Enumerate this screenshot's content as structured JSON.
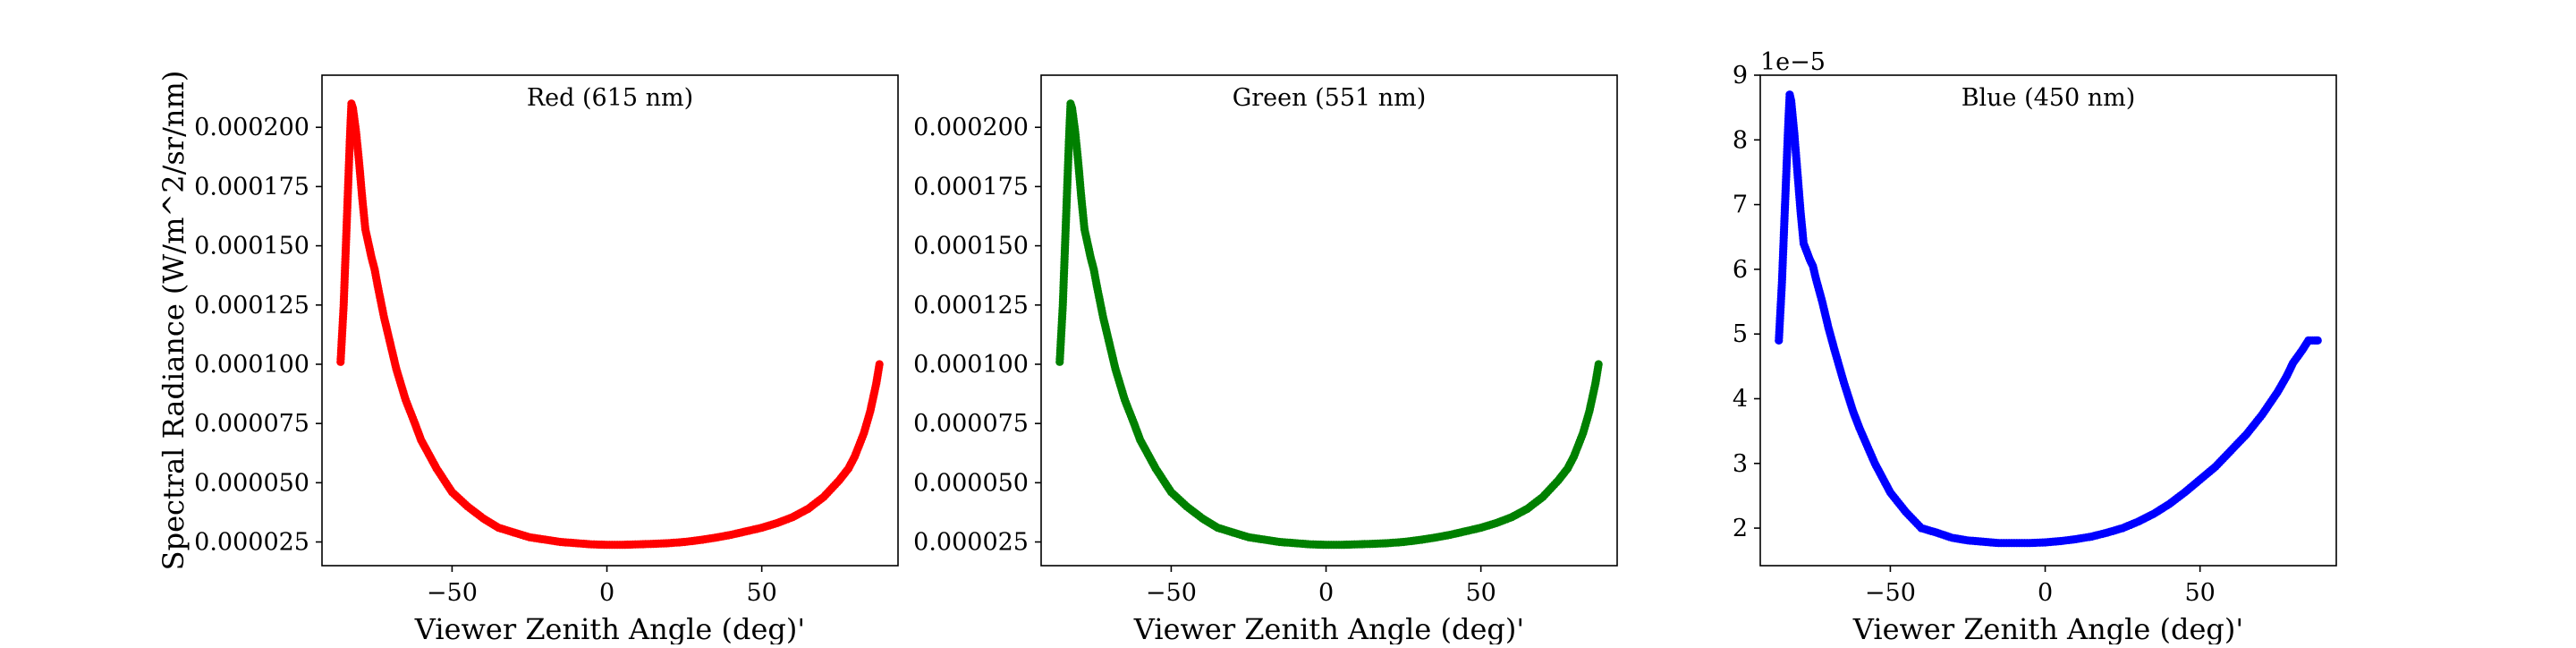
{
  "chart_data": [
    {
      "type": "scatter",
      "title": "Red (615 nm)",
      "xlabel": "Viewer Zenith Angle (deg)'",
      "ylabel": "Spectral Radiance (W/m^2/sr/nm)",
      "color": "#ff0000",
      "xlim": [
        -92,
        94
      ],
      "ylim": [
        1.5e-05,
        0.000222
      ],
      "x_ticks": [
        -50,
        0,
        50
      ],
      "x_tick_labels": [
        "−50",
        "0",
        "50"
      ],
      "y_ticks": [
        2.5e-05,
        5e-05,
        7.5e-05,
        0.0001,
        0.000125,
        0.00015,
        0.000175,
        0.0002
      ],
      "y_tick_labels": [
        "0.000025",
        "0.000050",
        "0.000075",
        "0.000100",
        "0.000125",
        "0.000150",
        "0.000175",
        "0.000200"
      ],
      "y_offset_label": "",
      "series": [
        {
          "x": [
            -86,
            -85,
            -84,
            -83,
            -82.5,
            -82,
            -81,
            -80,
            -79,
            -78,
            -76,
            -75,
            -74,
            -72,
            -70,
            -68,
            -65,
            -62,
            -60,
            -55,
            -50,
            -45,
            -40,
            -35,
            -30,
            -25,
            -20,
            -15,
            -10,
            -5,
            0,
            5,
            10,
            15,
            20,
            25,
            30,
            35,
            40,
            45,
            50,
            55,
            60,
            65,
            70,
            75,
            78,
            80,
            83,
            85,
            87,
            88
          ],
          "y": [
            0.000101,
            0.000125,
            0.00016,
            0.000195,
            0.00021,
            0.000208,
            0.000198,
            0.000185,
            0.00017,
            0.000157,
            0.000145,
            0.00014,
            0.000133,
            0.00012,
            0.000109,
            9.8e-05,
            8.5e-05,
            7.5e-05,
            6.8e-05,
            5.6e-05,
            4.6e-05,
            4e-05,
            3.5e-05,
            3.1e-05,
            2.9e-05,
            2.7e-05,
            2.6e-05,
            2.5e-05,
            2.45e-05,
            2.4e-05,
            2.38e-05,
            2.38e-05,
            2.4e-05,
            2.42e-05,
            2.45e-05,
            2.5e-05,
            2.58e-05,
            2.68e-05,
            2.8e-05,
            2.95e-05,
            3.1e-05,
            3.3e-05,
            3.55e-05,
            3.9e-05,
            4.4e-05,
            5.1e-05,
            5.6e-05,
            6.1e-05,
            7.1e-05,
            8e-05,
            9.2e-05,
            0.0001
          ]
        }
      ]
    },
    {
      "type": "scatter",
      "title": "Green (551 nm)",
      "xlabel": "Viewer Zenith Angle (deg)'",
      "ylabel": "",
      "color": "#008000",
      "xlim": [
        -92,
        94
      ],
      "ylim": [
        1.5e-05,
        0.000222
      ],
      "x_ticks": [
        -50,
        0,
        50
      ],
      "x_tick_labels": [
        "−50",
        "0",
        "50"
      ],
      "y_ticks": [
        2.5e-05,
        5e-05,
        7.5e-05,
        0.0001,
        0.000125,
        0.00015,
        0.000175,
        0.0002
      ],
      "y_tick_labels": [
        "0.000025",
        "0.000050",
        "0.000075",
        "0.000100",
        "0.000125",
        "0.000150",
        "0.000175",
        "0.000200"
      ],
      "y_offset_label": "",
      "series": [
        {
          "x": [
            -86,
            -85,
            -84,
            -83,
            -82.5,
            -82,
            -81,
            -80,
            -79,
            -78,
            -76,
            -75,
            -74,
            -72,
            -70,
            -68,
            -65,
            -62,
            -60,
            -55,
            -50,
            -45,
            -40,
            -35,
            -30,
            -25,
            -20,
            -15,
            -10,
            -5,
            0,
            5,
            10,
            15,
            20,
            25,
            30,
            35,
            40,
            45,
            50,
            55,
            60,
            65,
            70,
            75,
            78,
            80,
            83,
            85,
            87,
            88
          ],
          "y": [
            0.000101,
            0.000125,
            0.00016,
            0.000195,
            0.00021,
            0.000208,
            0.000198,
            0.000185,
            0.00017,
            0.000157,
            0.000145,
            0.00014,
            0.000133,
            0.00012,
            0.000109,
            9.8e-05,
            8.5e-05,
            7.5e-05,
            6.8e-05,
            5.6e-05,
            4.6e-05,
            4e-05,
            3.5e-05,
            3.1e-05,
            2.9e-05,
            2.7e-05,
            2.6e-05,
            2.5e-05,
            2.45e-05,
            2.4e-05,
            2.38e-05,
            2.38e-05,
            2.4e-05,
            2.42e-05,
            2.45e-05,
            2.5e-05,
            2.58e-05,
            2.68e-05,
            2.8e-05,
            2.95e-05,
            3.1e-05,
            3.3e-05,
            3.55e-05,
            3.9e-05,
            4.4e-05,
            5.1e-05,
            5.6e-05,
            6.1e-05,
            7.1e-05,
            8e-05,
            9.2e-05,
            0.0001
          ]
        }
      ]
    },
    {
      "type": "scatter",
      "title": "Blue (450 nm)",
      "xlabel": "Viewer Zenith Angle (deg)'",
      "ylabel": "",
      "color": "#0000ff",
      "xlim": [
        -92,
        94
      ],
      "ylim": [
        1.42e-05,
        9e-05
      ],
      "x_ticks": [
        -50,
        0,
        50
      ],
      "x_tick_labels": [
        "−50",
        "0",
        "50"
      ],
      "y_ticks": [
        2e-05,
        3e-05,
        4e-05,
        5e-05,
        6e-05,
        7e-05,
        8e-05,
        9e-05
      ],
      "y_tick_labels": [
        "2",
        "3",
        "4",
        "5",
        "6",
        "7",
        "8",
        "9"
      ],
      "y_offset_label": "1e−5",
      "series": [
        {
          "x": [
            -86,
            -85,
            -84,
            -83,
            -82.5,
            -82,
            -81,
            -80,
            -79,
            -78,
            -76,
            -75,
            -74,
            -72,
            -70,
            -68,
            -65,
            -62,
            -60,
            -55,
            -50,
            -45,
            -40,
            -35,
            -30,
            -25,
            -20,
            -15,
            -10,
            -5,
            0,
            5,
            10,
            15,
            20,
            25,
            30,
            35,
            40,
            45,
            50,
            55,
            60,
            65,
            70,
            75,
            78,
            80,
            83,
            85,
            87,
            88
          ],
          "y": [
            4.9e-05,
            5.8e-05,
            7e-05,
            8.2e-05,
            8.7e-05,
            8.6e-05,
            8.1e-05,
            7.5e-05,
            6.9e-05,
            6.4e-05,
            6.15e-05,
            6.05e-05,
            5.85e-05,
            5.5e-05,
            5.1e-05,
            4.75e-05,
            4.25e-05,
            3.8e-05,
            3.55e-05,
            3e-05,
            2.55e-05,
            2.25e-05,
            2e-05,
            1.93e-05,
            1.85e-05,
            1.81e-05,
            1.79e-05,
            1.77e-05,
            1.77e-05,
            1.77e-05,
            1.78e-05,
            1.8e-05,
            1.83e-05,
            1.87e-05,
            1.93e-05,
            2e-05,
            2.1e-05,
            2.22e-05,
            2.37e-05,
            2.55e-05,
            2.75e-05,
            2.95e-05,
            3.2e-05,
            3.45e-05,
            3.75e-05,
            4.1e-05,
            4.35e-05,
            4.55e-05,
            4.75e-05,
            4.9e-05,
            4.9e-05,
            4.9e-05
          ]
        }
      ]
    }
  ]
}
